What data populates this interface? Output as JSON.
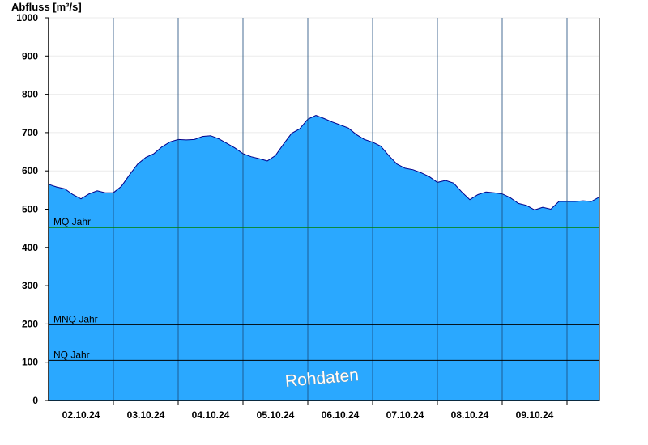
{
  "chart_data": {
    "type": "area",
    "ylabel": "Abfluss [m³/s]",
    "xlabel": "",
    "ylim": [
      0,
      1000
    ],
    "yticks": [
      0,
      100,
      200,
      300,
      400,
      500,
      600,
      700,
      800,
      900,
      1000
    ],
    "x_range": [
      "01.10.24 00:00",
      "09.10.24 12:00"
    ],
    "x_tick_labels": [
      "02.10.24",
      "03.10.24",
      "04.10.24",
      "05.10.24",
      "06.10.24",
      "07.10.24",
      "08.10.24",
      "09.10.24"
    ],
    "grid": true,
    "watermark": "Rohdaten",
    "colors": {
      "fill": "#2aa8ff",
      "line": "#00008b",
      "mq_line": "#008000",
      "ref_line": "#000000"
    },
    "reference_lines": [
      {
        "label": "MQ Jahr",
        "value": 452
      },
      {
        "label": "MNQ Jahr",
        "value": 198
      },
      {
        "label": "NQ Jahr",
        "value": 105
      }
    ],
    "series": [
      {
        "points": [
          [
            "01.10.24 00:00",
            565
          ],
          [
            "01.10.24 03:00",
            558
          ],
          [
            "01.10.24 06:00",
            553
          ],
          [
            "01.10.24 09:00",
            538
          ],
          [
            "01.10.24 12:00",
            527
          ],
          [
            "01.10.24 15:00",
            540
          ],
          [
            "01.10.24 18:00",
            548
          ],
          [
            "01.10.24 21:00",
            543
          ],
          [
            "02.10.24 00:00",
            543
          ],
          [
            "02.10.24 03:00",
            560
          ],
          [
            "02.10.24 06:00",
            590
          ],
          [
            "02.10.24 09:00",
            618
          ],
          [
            "02.10.24 12:00",
            635
          ],
          [
            "02.10.24 15:00",
            645
          ],
          [
            "02.10.24 18:00",
            663
          ],
          [
            "02.10.24 21:00",
            676
          ],
          [
            "03.10.24 00:00",
            682
          ],
          [
            "03.10.24 03:00",
            681
          ],
          [
            "03.10.24 06:00",
            682
          ],
          [
            "03.10.24 09:00",
            690
          ],
          [
            "03.10.24 12:00",
            692
          ],
          [
            "03.10.24 15:00",
            684
          ],
          [
            "03.10.24 18:00",
            672
          ],
          [
            "03.10.24 21:00",
            660
          ],
          [
            "04.10.24 00:00",
            645
          ],
          [
            "04.10.24 03:00",
            637
          ],
          [
            "04.10.24 06:00",
            632
          ],
          [
            "04.10.24 09:00",
            626
          ],
          [
            "04.10.24 12:00",
            640
          ],
          [
            "04.10.24 15:00",
            670
          ],
          [
            "04.10.24 18:00",
            698
          ],
          [
            "04.10.24 21:00",
            710
          ],
          [
            "05.10.24 00:00",
            735
          ],
          [
            "05.10.24 03:00",
            745
          ],
          [
            "05.10.24 06:00",
            737
          ],
          [
            "05.10.24 09:00",
            728
          ],
          [
            "05.10.24 12:00",
            720
          ],
          [
            "05.10.24 15:00",
            712
          ],
          [
            "05.10.24 18:00",
            695
          ],
          [
            "05.10.24 21:00",
            682
          ],
          [
            "06.10.24 00:00",
            675
          ],
          [
            "06.10.24 03:00",
            665
          ],
          [
            "06.10.24 06:00",
            640
          ],
          [
            "06.10.24 09:00",
            618
          ],
          [
            "06.10.24 12:00",
            607
          ],
          [
            "06.10.24 15:00",
            603
          ],
          [
            "06.10.24 18:00",
            595
          ],
          [
            "06.10.24 21:00",
            585
          ],
          [
            "07.10.24 00:00",
            570
          ],
          [
            "07.10.24 03:00",
            575
          ],
          [
            "07.10.24 06:00",
            568
          ],
          [
            "07.10.24 09:00",
            545
          ],
          [
            "07.10.24 12:00",
            525
          ],
          [
            "07.10.24 15:00",
            538
          ],
          [
            "07.10.24 18:00",
            545
          ],
          [
            "07.10.24 21:00",
            543
          ],
          [
            "08.10.24 00:00",
            540
          ],
          [
            "08.10.24 03:00",
            530
          ],
          [
            "08.10.24 06:00",
            515
          ],
          [
            "08.10.24 09:00",
            510
          ],
          [
            "08.10.24 12:00",
            498
          ],
          [
            "08.10.24 15:00",
            505
          ],
          [
            "08.10.24 18:00",
            500
          ],
          [
            "08.10.24 21:00",
            520
          ],
          [
            "09.10.24 00:00",
            520
          ],
          [
            "09.10.24 03:00",
            520
          ],
          [
            "09.10.24 06:00",
            522
          ],
          [
            "09.10.24 09:00",
            520
          ],
          [
            "09.10.24 12:00",
            532
          ]
        ]
      }
    ]
  }
}
